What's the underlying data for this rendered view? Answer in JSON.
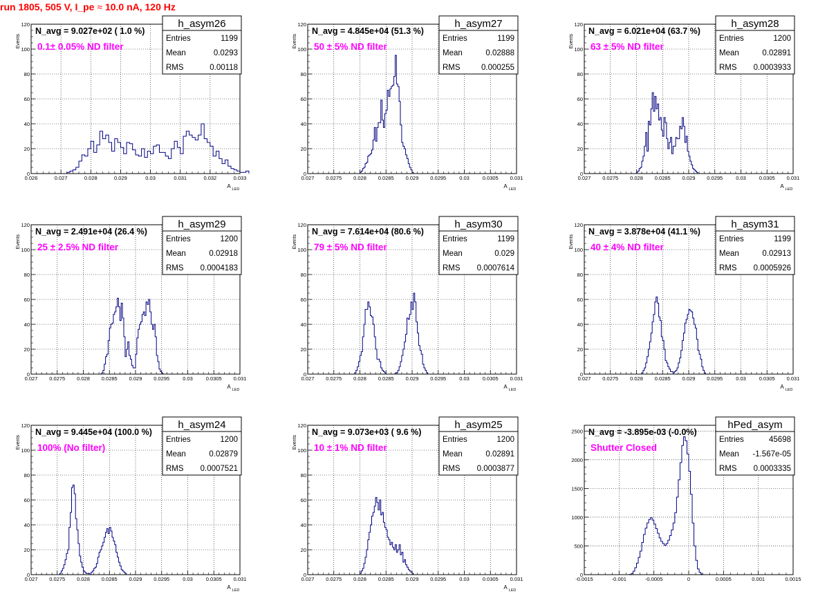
{
  "run_title": "run 1805,   505 V, I_pe",
  "run_title_approx": "≈",
  "run_title_rest": "10.0 nA, 120 Hz",
  "colors": {
    "hist": "#000080",
    "annotation": "#ff00ff",
    "run_title": "#ff0000",
    "grid": "#000000",
    "background": "#ffffff"
  },
  "chart_data": [
    {
      "type": "histogram",
      "title": "h_asym26",
      "stats": [
        [
          "Entries",
          "1199"
        ],
        [
          "Mean",
          "0.0293"
        ],
        [
          "RMS",
          "0.00118"
        ]
      ],
      "navg": "N_avg = 9.027e+02 ( 1.0 %)",
      "note": "0.1± 0.05% ND filter",
      "ylabel": "Events",
      "xlabel_main": "A",
      "xlabel_sub": "LED",
      "xlim": [
        0.026,
        0.033
      ],
      "ylim": [
        0,
        120
      ],
      "xticks": [
        "0.026",
        "0.027",
        "0.028",
        "0.029",
        "0.03",
        "0.031",
        "0.032",
        "0.033"
      ],
      "yticks": [
        "0",
        "20",
        "40",
        "60",
        "80",
        "100",
        "120"
      ],
      "grid": true,
      "bins_start": 0.0272,
      "bin_width": 0.0001,
      "counts": [
        1,
        2,
        3,
        5,
        10,
        15,
        14,
        20,
        26,
        17,
        23,
        34,
        28,
        31,
        25,
        18,
        28,
        25,
        21,
        16,
        25,
        24,
        19,
        15,
        14,
        20,
        13,
        18,
        16,
        22,
        23,
        17,
        17,
        14,
        12,
        20,
        26,
        21,
        16,
        30,
        34,
        31,
        29,
        27,
        31,
        40,
        28,
        25,
        22,
        14,
        18,
        12,
        8,
        11,
        6,
        4,
        3,
        2,
        1,
        1,
        2
      ]
    },
    {
      "type": "histogram",
      "title": "h_asym27",
      "stats": [
        [
          "Entries",
          "1199"
        ],
        [
          "Mean",
          "0.02888"
        ],
        [
          "RMS",
          "0.000255"
        ]
      ],
      "navg": "N_avg = 4.845e+04 (51.3 %)",
      "note": "50 ± 5% ND filter",
      "ylabel": "Events",
      "xlabel_main": "A",
      "xlabel_sub": "LED",
      "xlim": [
        0.027,
        0.031
      ],
      "ylim": [
        0,
        120
      ],
      "xticks": [
        "0.027",
        "0.0275",
        "0.028",
        "0.0285",
        "0.029",
        "0.0295",
        "0.03",
        "0.0305",
        "0.031"
      ],
      "yticks": [
        "0",
        "20",
        "40",
        "60",
        "80",
        "100",
        "120"
      ],
      "grid": true,
      "bins_start": 0.028,
      "bin_width": 2.5e-05,
      "counts": [
        1,
        2,
        4,
        5,
        8,
        9,
        14,
        15,
        16,
        19,
        27,
        37,
        26,
        37,
        41,
        41,
        59,
        43,
        37,
        48,
        51,
        67,
        62,
        68,
        70,
        71,
        78,
        95,
        72,
        70,
        58,
        39,
        25,
        22,
        20,
        15,
        12,
        8,
        5,
        3,
        1
      ]
    },
    {
      "type": "histogram",
      "title": "h_asym28",
      "stats": [
        [
          "Entries",
          "1200"
        ],
        [
          "Mean",
          "0.02891"
        ],
        [
          "RMS",
          "0.0003933"
        ]
      ],
      "navg": "N_avg = 6.021e+04 (63.7 %)",
      "note": "63 ± 5% ND filter",
      "ylabel": "Events",
      "xlabel_main": "A",
      "xlabel_sub": "LED",
      "xlim": [
        0.027,
        0.031
      ],
      "ylim": [
        0,
        120
      ],
      "xticks": [
        "0.027",
        "0.0275",
        "0.028",
        "0.0285",
        "0.029",
        "0.0295",
        "0.03",
        "0.0305",
        "0.031"
      ],
      "yticks": [
        "0",
        "20",
        "40",
        "60",
        "80",
        "100",
        "120"
      ],
      "grid": true,
      "bins_start": 0.028,
      "bin_width": 2.5e-05,
      "counts": [
        1,
        2,
        4,
        5,
        10,
        14,
        22,
        33,
        18,
        42,
        39,
        52,
        65,
        50,
        62,
        52,
        56,
        43,
        45,
        35,
        30,
        45,
        41,
        28,
        20,
        25,
        29,
        16,
        22,
        22,
        29,
        28,
        28,
        38,
        36,
        45,
        38,
        25,
        30,
        18,
        14,
        10,
        7,
        4,
        3,
        2,
        1
      ]
    },
    {
      "type": "histogram",
      "title": "h_asym29",
      "stats": [
        [
          "Entries",
          "1200"
        ],
        [
          "Mean",
          "0.02918"
        ],
        [
          "RMS",
          "0.0004183"
        ]
      ],
      "navg": "N_avg = 2.491e+04 (26.4 %)",
      "note": "25 ± 2.5% ND filter",
      "ylabel": "Events",
      "xlabel_main": "A",
      "xlabel_sub": "LED",
      "xlim": [
        0.027,
        0.031
      ],
      "ylim": [
        0,
        120
      ],
      "xticks": [
        "0.027",
        "0.0275",
        "0.028",
        "0.0285",
        "0.029",
        "0.0295",
        "0.03",
        "0.0305",
        "0.031"
      ],
      "yticks": [
        "0",
        "20",
        "40",
        "60",
        "80",
        "100",
        "120"
      ],
      "grid": true,
      "bins_start": 0.02835,
      "bin_width": 2.5e-05,
      "counts": [
        1,
        3,
        8,
        14,
        16,
        27,
        37,
        40,
        41,
        48,
        50,
        54,
        61,
        54,
        43,
        57,
        45,
        30,
        14,
        20,
        26,
        15,
        12,
        7,
        5,
        5,
        16,
        29,
        36,
        40,
        42,
        48,
        50,
        47,
        58,
        56,
        60,
        50,
        40,
        36,
        40,
        30,
        15,
        10,
        4,
        2,
        1
      ]
    },
    {
      "type": "histogram",
      "title": "h_asym30",
      "stats": [
        [
          "Entries",
          "1199"
        ],
        [
          "Mean",
          "0.029"
        ],
        [
          "RMS",
          "0.0007614"
        ]
      ],
      "navg": "N_avg = 7.614e+04 (80.6 %)",
      "note": "79 ± 5% ND filter",
      "ylabel": "Events",
      "xlabel_main": "A",
      "xlabel_sub": "LED",
      "xlim": [
        0.027,
        0.031
      ],
      "ylim": [
        0,
        120
      ],
      "xticks": [
        "0.027",
        "0.0275",
        "0.028",
        "0.0285",
        "0.029",
        "0.0295",
        "0.03",
        "0.0305",
        "0.031"
      ],
      "yticks": [
        "0",
        "20",
        "40",
        "60",
        "80",
        "100",
        "120"
      ],
      "grid": true,
      "bins_start": 0.0279,
      "bin_width": 2.5e-05,
      "counts": [
        1,
        3,
        6,
        10,
        15,
        18,
        30,
        40,
        52,
        52,
        58,
        54,
        47,
        46,
        40,
        30,
        20,
        12,
        12,
        10,
        5,
        3,
        2,
        1,
        0,
        0,
        0,
        0,
        0,
        0,
        0,
        1,
        1,
        3,
        6,
        10,
        15,
        20,
        26,
        32,
        45,
        44,
        48,
        58,
        52,
        65,
        58,
        42,
        33,
        23,
        19,
        16,
        8,
        5,
        3,
        1
      ]
    },
    {
      "type": "histogram",
      "title": "h_asym31",
      "stats": [
        [
          "Entries",
          "1199"
        ],
        [
          "Mean",
          "0.02913"
        ],
        [
          "RMS",
          "0.0005926"
        ]
      ],
      "navg": "N_avg = 3.878e+04 (41.1 %)",
      "note": "40 ± 4% ND filter",
      "ylabel": "Events",
      "xlabel_main": "A",
      "xlabel_sub": "LED",
      "xlim": [
        0.027,
        0.031
      ],
      "ylim": [
        0,
        120
      ],
      "xticks": [
        "0.027",
        "0.0275",
        "0.028",
        "0.0285",
        "0.029",
        "0.0295",
        "0.03",
        "0.0305",
        "0.031"
      ],
      "yticks": [
        "0",
        "20",
        "40",
        "60",
        "80",
        "100",
        "120"
      ],
      "grid": true,
      "bins_start": 0.0281,
      "bin_width": 2.5e-05,
      "counts": [
        1,
        3,
        5,
        9,
        14,
        20,
        26,
        33,
        42,
        48,
        58,
        62,
        57,
        46,
        43,
        30,
        27,
        20,
        11,
        9,
        6,
        4,
        2,
        2,
        1,
        2,
        3,
        5,
        9,
        13,
        19,
        27,
        33,
        41,
        44,
        48,
        52,
        51,
        50,
        45,
        40,
        37,
        28,
        19,
        16,
        12,
        6,
        3,
        1
      ]
    },
    {
      "type": "histogram",
      "title": "h_asym24",
      "stats": [
        [
          "Entries",
          "1200"
        ],
        [
          "Mean",
          "0.02879"
        ],
        [
          "RMS",
          "0.0007521"
        ]
      ],
      "navg": "N_avg = 9.445e+04 (100.0 %)",
      "note": "100% (No filter)",
      "ylabel": "Events",
      "xlabel_main": "A",
      "xlabel_sub": "LED",
      "xlim": [
        0.027,
        0.031
      ],
      "ylim": [
        0,
        120
      ],
      "xticks": [
        "0.027",
        "0.0275",
        "0.028",
        "0.0285",
        "0.029",
        "0.0295",
        "0.03",
        "0.0305",
        "0.031"
      ],
      "yticks": [
        "0",
        "20",
        "40",
        "60",
        "80",
        "100",
        "120"
      ],
      "grid": true,
      "bins_start": 0.02755,
      "bin_width": 2.5e-05,
      "counts": [
        1,
        3,
        5,
        8,
        12,
        17,
        20,
        38,
        50,
        70,
        72,
        65,
        45,
        36,
        25,
        15,
        10,
        6,
        3,
        2,
        1,
        1,
        1,
        0,
        2,
        3,
        5,
        6,
        9,
        14,
        18,
        20,
        23,
        26,
        30,
        34,
        37,
        33,
        38,
        35,
        30,
        27,
        24,
        18,
        14,
        10,
        7,
        4,
        3,
        2,
        1
      ]
    },
    {
      "type": "histogram",
      "title": "h_asym25",
      "stats": [
        [
          "Entries",
          "1200"
        ],
        [
          "Mean",
          "0.02891"
        ],
        [
          "RMS",
          "0.0003877"
        ]
      ],
      "navg": "N_avg = 9.073e+03 ( 9.6 %)",
      "note": "10 ± 1% ND filter",
      "ylabel": "Events",
      "xlabel_main": "A",
      "xlabel_sub": "LED",
      "xlim": [
        0.027,
        0.031
      ],
      "ylim": [
        0,
        120
      ],
      "xticks": [
        "0.027",
        "0.0275",
        "0.028",
        "0.0285",
        "0.029",
        "0.0295",
        "0.03",
        "0.0305",
        "0.031"
      ],
      "yticks": [
        "0",
        "20",
        "40",
        "60",
        "80",
        "100",
        "120"
      ],
      "grid": true,
      "bins_start": 0.028,
      "bin_width": 2.5e-05,
      "counts": [
        1,
        3,
        5,
        9,
        14,
        20,
        28,
        34,
        40,
        47,
        50,
        55,
        62,
        58,
        52,
        60,
        48,
        50,
        42,
        38,
        36,
        30,
        28,
        24,
        26,
        22,
        20,
        24,
        18,
        20,
        24,
        16,
        18,
        10,
        12,
        8,
        6,
        4,
        3,
        2,
        1
      ]
    },
    {
      "type": "histogram",
      "title": "hPed_asym",
      "stats": [
        [
          "Entries",
          "45698"
        ],
        [
          "Mean",
          "-1.567e-05"
        ],
        [
          "RMS",
          "0.0003335"
        ]
      ],
      "navg": "N_avg = -3.895e-03 (-0.0%)",
      "note": "Shutter Closed",
      "ylabel": "",
      "xlabel_main": "",
      "xlabel_sub": "",
      "xlim": [
        -0.0015,
        0.0015
      ],
      "ylim": [
        0,
        2600
      ],
      "xticks": [
        "-0.0015",
        "-0.001",
        "-0.0005",
        "0",
        "0.0005",
        "0.001",
        "0.0015"
      ],
      "yticks": [
        "0",
        "500",
        "1000",
        "1500",
        "2000",
        "2500"
      ],
      "grid": true,
      "bins_start": -0.00085,
      "bin_width": 2.5e-05,
      "counts": [
        5,
        20,
        60,
        120,
        200,
        300,
        410,
        560,
        700,
        810,
        900,
        960,
        990,
        950,
        880,
        800,
        720,
        640,
        580,
        540,
        510,
        540,
        600,
        680,
        780,
        900,
        1080,
        1350,
        1650,
        1950,
        2250,
        2400,
        2330,
        2100,
        1800,
        1400,
        900,
        500,
        250,
        100,
        40,
        10
      ]
    }
  ]
}
